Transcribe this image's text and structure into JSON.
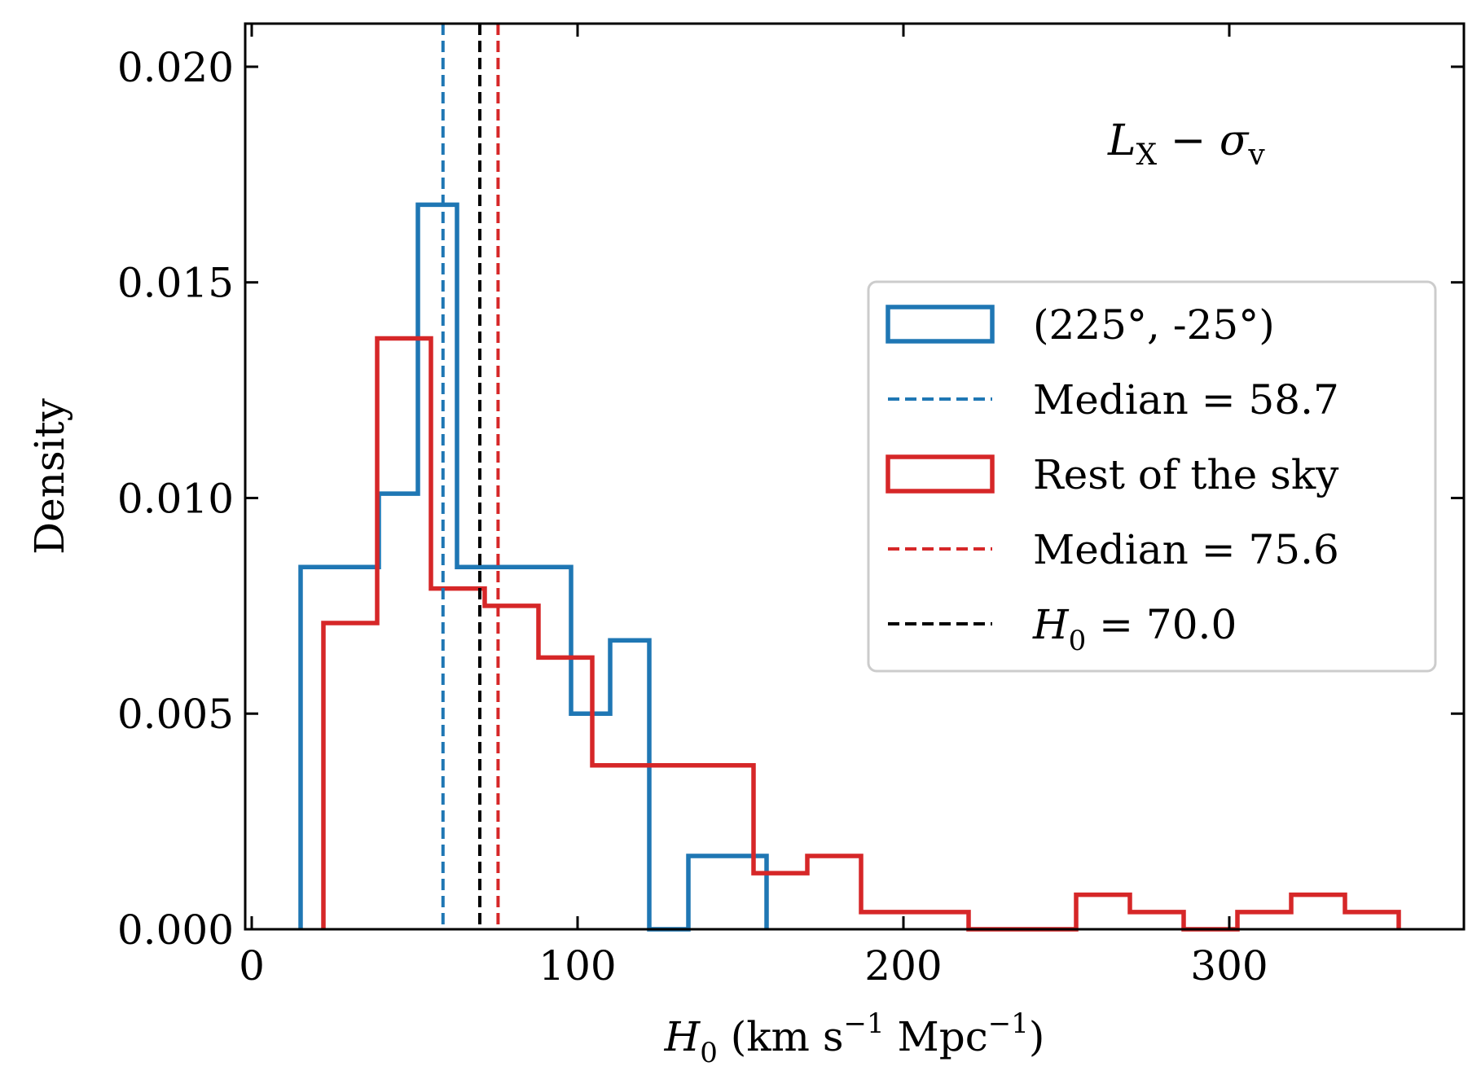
{
  "chart_data": {
    "type": "histogram",
    "xlabel": {
      "symbol": "H",
      "sub": "0",
      "pre_unit": " (km s",
      "sup1": "−1",
      "mid_unit": " Mpc",
      "sup2": "−1",
      "post": ")"
    },
    "ylabel": "Density",
    "xlim": [
      -2,
      372
    ],
    "ylim": [
      0,
      0.021
    ],
    "xticks": [
      0,
      100,
      200,
      300
    ],
    "xtick_labels": [
      "0",
      "100",
      "200",
      "300"
    ],
    "yticks": [
      0.0,
      0.005,
      0.01,
      0.015,
      0.02
    ],
    "ytick_labels": [
      "0.000",
      "0.005",
      "0.010",
      "0.015",
      "0.020"
    ],
    "annotation": {
      "L": "L",
      "Lsub": "X",
      "dash": " − ",
      "sigma": "σ",
      "sigmasub": "v"
    },
    "series": [
      {
        "name": "(225°, -25°)",
        "color": "#1f77b4",
        "style": "step",
        "edges": [
          15,
          27,
          39,
          51,
          63,
          75,
          87,
          98,
          110,
          122,
          134,
          146,
          158
        ],
        "values": [
          0.0084,
          0.0084,
          0.0101,
          0.0168,
          0.0084,
          0.0084,
          0.0084,
          0.005,
          0.0067,
          0.0,
          0.0017,
          0.0017
        ]
      },
      {
        "name": "Rest of the sky",
        "color": "#d62728",
        "style": "step",
        "edges": [
          22,
          38.5,
          55,
          71.5,
          88,
          104.5,
          121,
          137.5,
          154,
          170.5,
          187,
          203.5,
          220,
          236.5,
          253,
          269.5,
          286,
          302.5,
          319,
          335.5,
          352
        ],
        "values": [
          0.0071,
          0.0137,
          0.0079,
          0.0075,
          0.0063,
          0.0038,
          0.0038,
          0.0038,
          0.0013,
          0.0017,
          0.0004,
          0.0004,
          0.0,
          0.0,
          0.0008,
          0.0004,
          0.0,
          0.0004,
          0.0008,
          0.0004
        ]
      }
    ],
    "vlines": [
      {
        "name": "Median = 58.7",
        "x": 58.7,
        "color": "#1f77b4"
      },
      {
        "name": "Median = 75.6",
        "x": 75.6,
        "color": "#d62728"
      },
      {
        "name": "H0 = 70.0",
        "x": 70.0,
        "color": "#000000",
        "legend": {
          "symbol": "H",
          "sub": "0",
          "rest": " = 70.0"
        }
      }
    ],
    "legend_position": "center-right",
    "legend_order": [
      "(225°, -25°)",
      "Median = 58.7",
      "Rest of the sky",
      "Median = 75.6",
      "H0 = 70.0"
    ]
  }
}
